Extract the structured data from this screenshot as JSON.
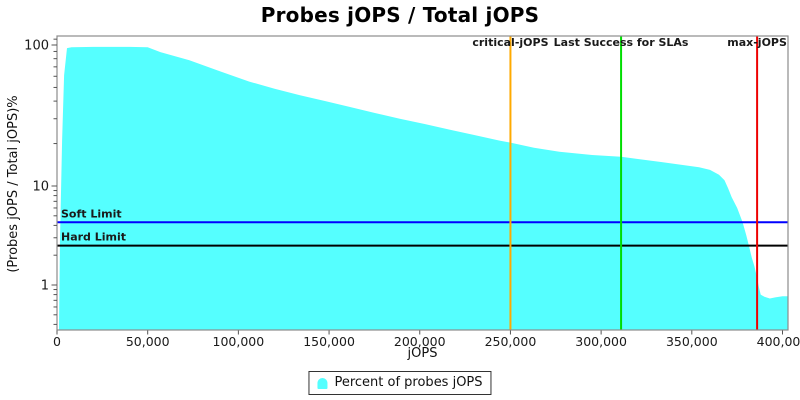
{
  "chart_data": {
    "type": "area",
    "title": "Probes jOPS / Total jOPS",
    "xlabel": "jOPS",
    "ylabel": "(Probes jOPS / Total jOPS)%",
    "x_range": [
      0,
      400000
    ],
    "x_ticks": [
      0,
      50000,
      100000,
      150000,
      200000,
      250000,
      300000,
      350000,
      400000
    ],
    "x_tick_labels": [
      "0",
      "50,000",
      "100,000",
      "150,000",
      "200,000",
      "250,000",
      "300,000",
      "350,000",
      "400,000"
    ],
    "y_scale": "log",
    "y_major_ticks": [
      100,
      10,
      1
    ],
    "y_major_tick_labels": [
      "100",
      "10",
      "1"
    ],
    "y_minor_ticks": [
      110,
      90,
      80,
      70,
      60,
      50,
      40,
      30,
      20,
      9,
      8,
      7,
      6,
      5,
      4,
      3,
      2,
      0.9,
      0.8,
      0.7,
      0.6,
      0.5,
      0.4
    ],
    "grid": "off",
    "legend_position": "bottom-center",
    "series": [
      {
        "name": "Percent of probes jOPS",
        "color": "#55ffff",
        "points": [
          [
            1100,
            0.36
          ],
          [
            1650,
            2.9
          ],
          [
            2800,
            21
          ],
          [
            3900,
            61
          ],
          [
            5500,
            95
          ],
          [
            8000,
            96.5
          ],
          [
            20000,
            97
          ],
          [
            40000,
            97
          ],
          [
            50000,
            96.5
          ],
          [
            57000,
            89
          ],
          [
            73000,
            78
          ],
          [
            90000,
            65
          ],
          [
            106000,
            55
          ],
          [
            120000,
            49
          ],
          [
            134000,
            44
          ],
          [
            148000,
            40
          ],
          [
            161000,
            36.5
          ],
          [
            175000,
            33
          ],
          [
            189000,
            30
          ],
          [
            203000,
            27.5
          ],
          [
            217000,
            25
          ],
          [
            230000,
            23
          ],
          [
            244000,
            21
          ],
          [
            250000,
            20.3
          ],
          [
            263000,
            18.7
          ],
          [
            277000,
            17.5
          ],
          [
            295000,
            16.6
          ],
          [
            311000,
            16.1
          ],
          [
            333000,
            14.8
          ],
          [
            354000,
            13.6
          ],
          [
            360000,
            13
          ],
          [
            365000,
            12
          ],
          [
            368000,
            11
          ],
          [
            370000,
            9.5
          ],
          [
            372000,
            7.7
          ],
          [
            375000,
            6.0
          ],
          [
            378000,
            4.3
          ],
          [
            380000,
            3.2
          ],
          [
            381500,
            2.5
          ],
          [
            383000,
            1.9
          ],
          [
            384500,
            1.55
          ],
          [
            386000,
            1.18
          ],
          [
            387000,
            0.95
          ],
          [
            388000,
            0.8
          ],
          [
            390000,
            0.76
          ],
          [
            393000,
            0.73
          ],
          [
            396000,
            0.75
          ],
          [
            400000,
            0.77
          ]
        ]
      }
    ],
    "vlines": [
      {
        "label": "critical-jOPS",
        "value": 250000,
        "color": "#ffaa00"
      },
      {
        "label": "Last Success for SLAs",
        "value": 311000,
        "color": "#00dd00"
      },
      {
        "label": "max-jOPS",
        "value": 386000,
        "color": "#ee0000"
      }
    ],
    "hlines": [
      {
        "label": "Soft Limit",
        "value": 4.3,
        "color": "#0000ff"
      },
      {
        "label": "Hard Limit",
        "value": 2.5,
        "color": "#000000"
      }
    ],
    "colors": {
      "area_fill": "#55ffff",
      "plot_border": "#8c8c8c",
      "tick_mark": "#555555",
      "tick_label": "#1a1a1a",
      "annotation_text": "#111111"
    }
  }
}
